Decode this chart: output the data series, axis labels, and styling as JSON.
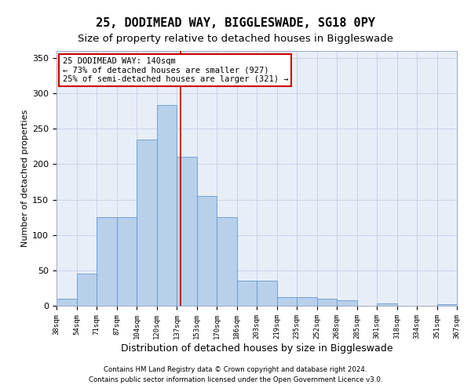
{
  "title": "25, DODIMEAD WAY, BIGGLESWADE, SG18 0PY",
  "subtitle": "Size of property relative to detached houses in Biggleswade",
  "xlabel": "Distribution of detached houses by size in Biggleswade",
  "ylabel": "Number of detached properties",
  "bins": [
    "38sqm",
    "54sqm",
    "71sqm",
    "87sqm",
    "104sqm",
    "120sqm",
    "137sqm",
    "153sqm",
    "170sqm",
    "186sqm",
    "203sqm",
    "219sqm",
    "235sqm",
    "252sqm",
    "268sqm",
    "285sqm",
    "301sqm",
    "318sqm",
    "334sqm",
    "351sqm",
    "367sqm"
  ],
  "values": [
    10,
    45,
    125,
    125,
    235,
    284,
    210,
    155,
    125,
    35,
    35,
    12,
    12,
    10,
    8,
    0,
    3,
    0,
    0,
    2
  ],
  "bar_color": "#b8d0ea",
  "bar_edge_color": "#6699cc",
  "vline_color": "#cc0000",
  "ylim": [
    0,
    360
  ],
  "yticks": [
    0,
    50,
    100,
    150,
    200,
    250,
    300,
    350
  ],
  "annotation_title": "25 DODIMEAD WAY: 140sqm",
  "annotation_line1": "← 73% of detached houses are smaller (927)",
  "annotation_line2": "25% of semi-detached houses are larger (321) →",
  "annotation_box_color": "#ffffff",
  "annotation_box_edge": "#cc0000",
  "footer1": "Contains HM Land Registry data © Crown copyright and database right 2024.",
  "footer2": "Contains public sector information licensed under the Open Government Licence v3.0.",
  "bg_color": "#e8eef8",
  "grid_color": "#c8d4e8",
  "title_fontsize": 11,
  "subtitle_fontsize": 9.5,
  "annotation_fontsize": 7.5,
  "ylabel_fontsize": 8,
  "xlabel_fontsize": 9,
  "ytick_fontsize": 8,
  "xtick_fontsize": 6.5
}
